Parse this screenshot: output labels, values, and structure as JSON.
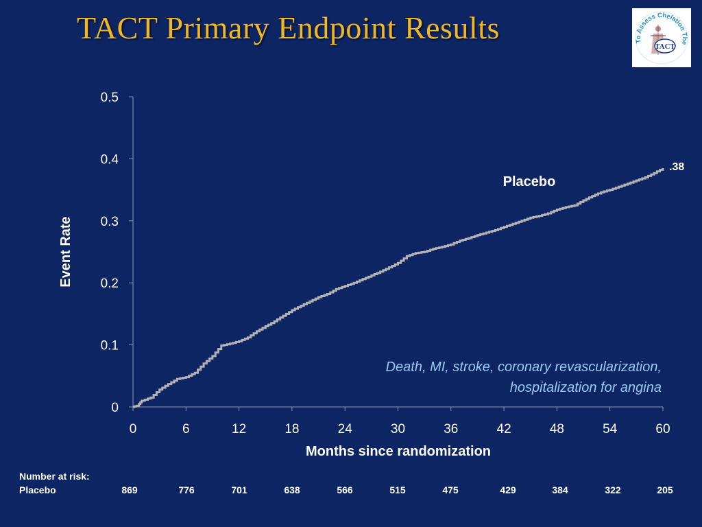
{
  "slide": {
    "title": "TACT Primary Endpoint Results"
  },
  "logo": {
    "ring_text": "Trial To Assess Chelation Therapy",
    "center_text": "TACT",
    "ring_color": "#1f8fd0",
    "center_color": "#1a3d8f"
  },
  "colors": {
    "background": "#0d2563",
    "title": "#f2b724",
    "curve": "#b3b3b3",
    "note": "#9bc9f2",
    "axis": "#8a9ab8"
  },
  "chart_data": {
    "type": "line",
    "title": "",
    "xlabel": "Months since randomization",
    "ylabel": "Event Rate",
    "xlim": [
      0,
      60
    ],
    "ylim": [
      0,
      0.5
    ],
    "x_ticks": [
      0,
      6,
      12,
      18,
      24,
      30,
      36,
      42,
      48,
      54,
      60
    ],
    "y_ticks": [
      0,
      0.1,
      0.2,
      0.3,
      0.4,
      0.5
    ],
    "y_tick_labels": [
      "0",
      "0.1",
      "0.2",
      "0.3",
      "0.4",
      "0.5"
    ],
    "grid": false,
    "series": [
      {
        "name": "Placebo",
        "color": "#b3b3b3",
        "end_label": ".38",
        "x": [
          0,
          0.5,
          1,
          2,
          3,
          4,
          5,
          6,
          7,
          8,
          9,
          10,
          11,
          12,
          13,
          14,
          15,
          16,
          17,
          18,
          19,
          20,
          21,
          22,
          23,
          24,
          25,
          26,
          27,
          28,
          29,
          30,
          31,
          32,
          33,
          34,
          35,
          36,
          37,
          38,
          39,
          40,
          41,
          42,
          43,
          44,
          45,
          46,
          47,
          48,
          49,
          50,
          51,
          52,
          53,
          54,
          55,
          56,
          57,
          58,
          59,
          60
        ],
        "y": [
          0,
          0.002,
          0.01,
          0.015,
          0.028,
          0.037,
          0.045,
          0.048,
          0.055,
          0.07,
          0.082,
          0.099,
          0.102,
          0.106,
          0.112,
          0.122,
          0.13,
          0.138,
          0.147,
          0.156,
          0.163,
          0.17,
          0.177,
          0.182,
          0.19,
          0.195,
          0.2,
          0.206,
          0.212,
          0.218,
          0.225,
          0.232,
          0.243,
          0.248,
          0.25,
          0.255,
          0.258,
          0.262,
          0.268,
          0.272,
          0.277,
          0.281,
          0.285,
          0.29,
          0.295,
          0.3,
          0.305,
          0.308,
          0.312,
          0.318,
          0.322,
          0.325,
          0.333,
          0.34,
          0.346,
          0.35,
          0.355,
          0.36,
          0.365,
          0.37,
          0.377,
          0.385
        ]
      }
    ],
    "annotations": {
      "series_label": "Placebo",
      "endpoint_line1": "Death, MI, stroke, coronary revascularization,",
      "endpoint_line2": "hospitalization for angina"
    }
  },
  "risk_table": {
    "title": "Number at risk:",
    "rows": [
      {
        "label": "Placebo",
        "values": [
          "869",
          "776",
          "701",
          "638",
          "566",
          "515",
          "475",
          "429",
          "384",
          "322",
          "205"
        ]
      }
    ]
  }
}
